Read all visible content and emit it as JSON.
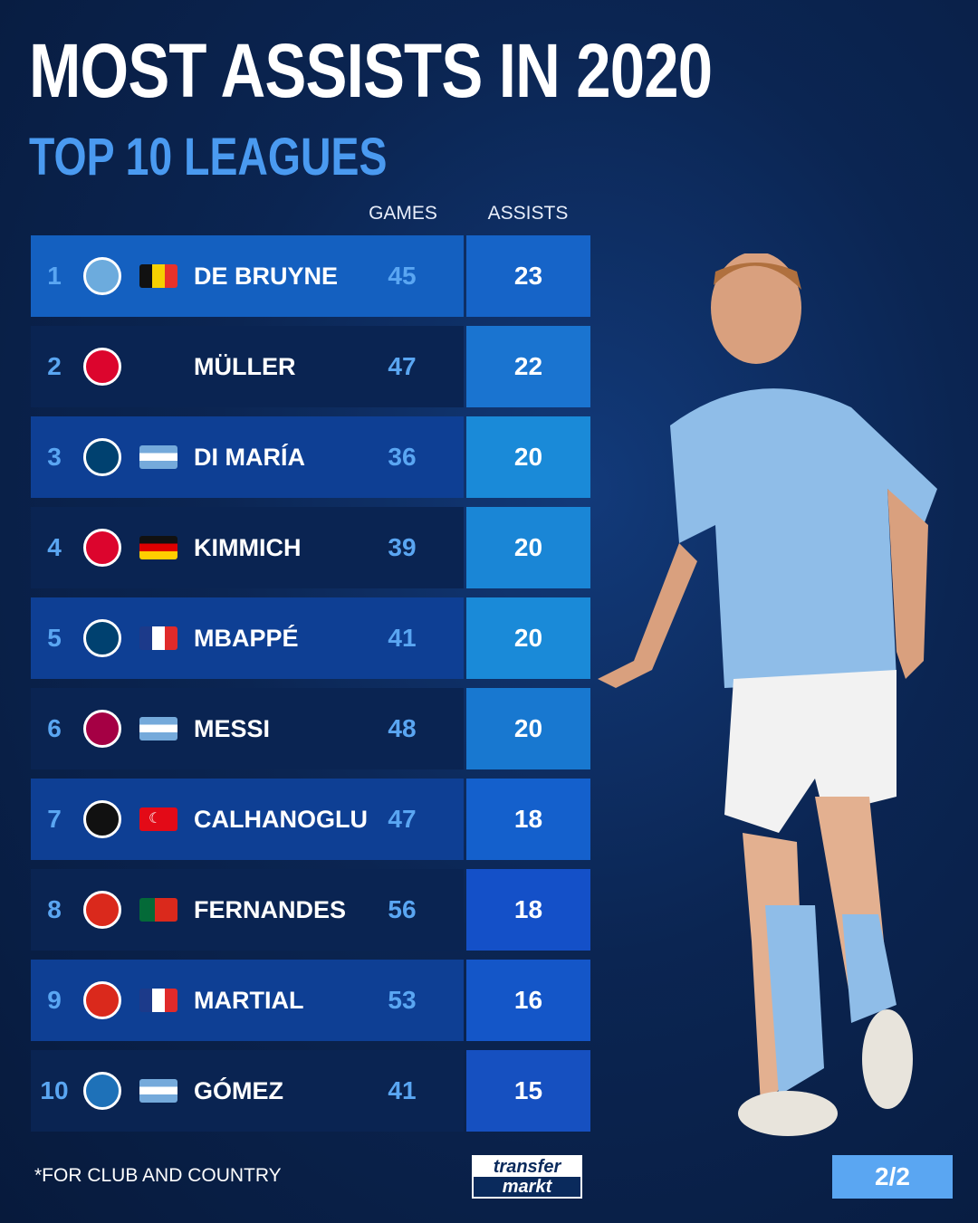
{
  "title": "MOST ASSISTS IN 2020",
  "subtitle": "TOP 10 LEAGUES",
  "chart_data": {
    "type": "table",
    "columns": [
      "GAMES",
      "ASSISTS"
    ],
    "rows": [
      {
        "rank": "1",
        "club": "Manchester City",
        "flag": "Belgium",
        "name": "DE BRUYNE",
        "games": "45",
        "assists": "23"
      },
      {
        "rank": "2",
        "club": "Bayern München",
        "flag": "",
        "name": "MÜLLER",
        "games": "47",
        "assists": "22"
      },
      {
        "rank": "3",
        "club": "Paris Saint-Germain",
        "flag": "Argentina",
        "name": "DI MARÍA",
        "games": "36",
        "assists": "20"
      },
      {
        "rank": "4",
        "club": "Bayern München",
        "flag": "Germany",
        "name": "KIMMICH",
        "games": "39",
        "assists": "20"
      },
      {
        "rank": "5",
        "club": "Paris Saint-Germain",
        "flag": "France",
        "name": "MBAPPÉ",
        "games": "41",
        "assists": "20"
      },
      {
        "rank": "6",
        "club": "FC Barcelona",
        "flag": "Argentina",
        "name": "MESSI",
        "games": "48",
        "assists": "20"
      },
      {
        "rank": "7",
        "club": "AC Milan",
        "flag": "Turkey",
        "name": "CALHANOGLU",
        "games": "47",
        "assists": "18"
      },
      {
        "rank": "8",
        "club": "Sporting CP / Manchester United",
        "flag": "Portugal",
        "name": "FERNANDES",
        "games": "56",
        "assists": "18"
      },
      {
        "rank": "9",
        "club": "Manchester United",
        "flag": "France",
        "name": "MARTIAL",
        "games": "53",
        "assists": "16"
      },
      {
        "rank": "10",
        "club": "Atalanta",
        "flag": "Argentina",
        "name": "GÓMEZ",
        "games": "41",
        "assists": "15"
      }
    ]
  },
  "footnote": "*FOR CLUB AND COUNTRY",
  "logo": {
    "line1": "transfer",
    "line2": "markt"
  },
  "page": "2/2",
  "colors": {
    "accent": "#4a9af0",
    "row_light": "#0e4aa6",
    "row_dark": "#0a2452"
  }
}
